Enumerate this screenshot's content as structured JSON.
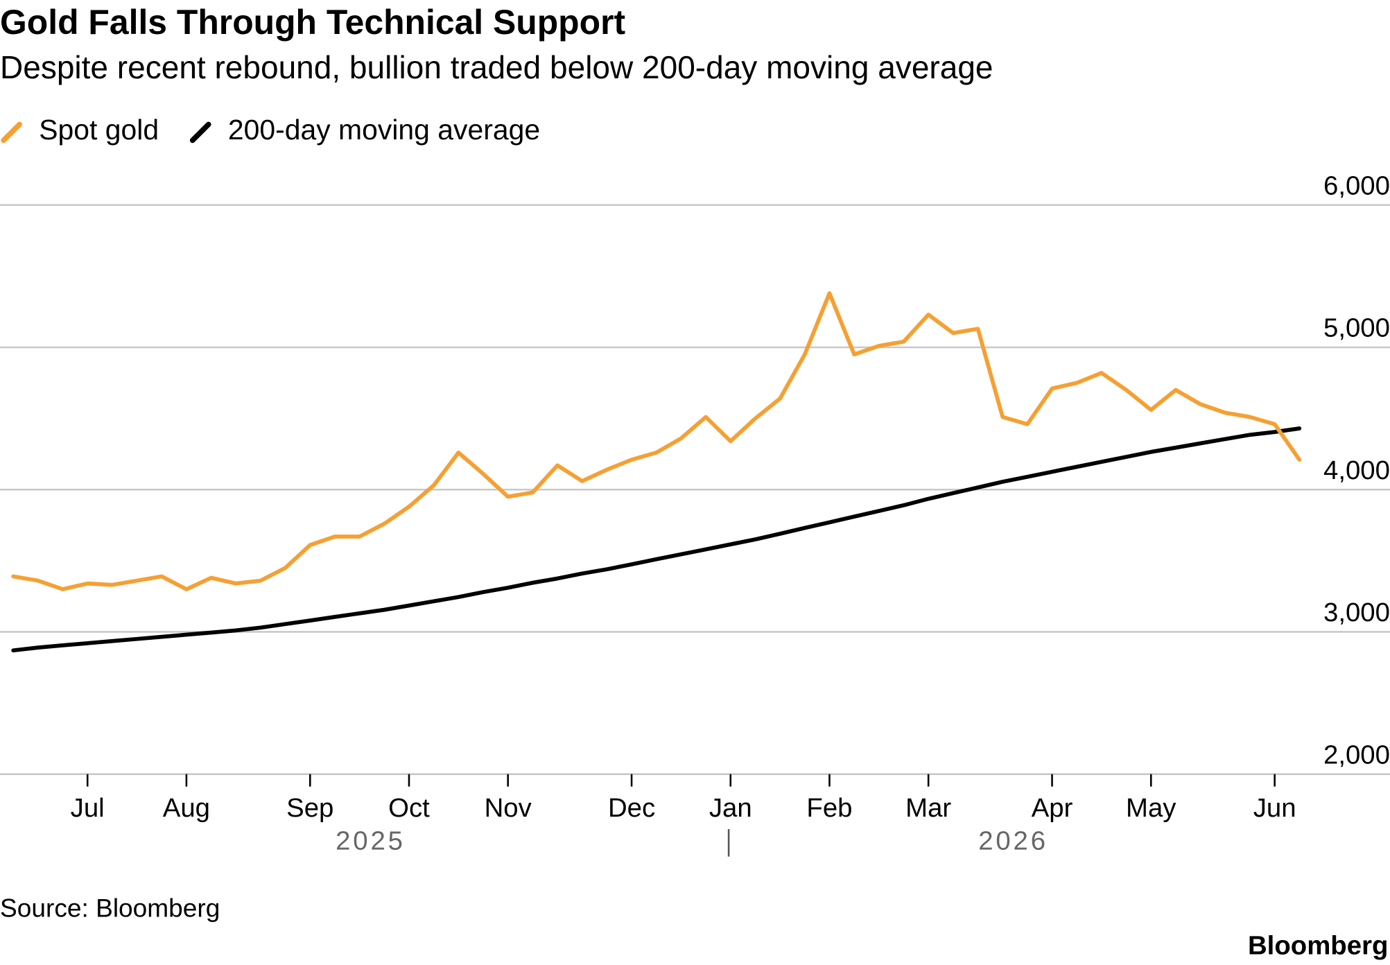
{
  "chart_data": {
    "type": "line",
    "title": "Gold Falls Through Technical Support",
    "subtitle": "Despite recent rebound, bullion traded below 200-day moving average",
    "source": "Source: Bloomberg",
    "brand": "Bloomberg",
    "categories": [
      null,
      null,
      null,
      "Jul",
      null,
      null,
      null,
      "Aug",
      null,
      null,
      null,
      null,
      "Sep",
      null,
      null,
      null,
      "Oct",
      null,
      null,
      null,
      "Nov",
      null,
      null,
      null,
      null,
      "Dec",
      null,
      null,
      null,
      "Jan",
      null,
      null,
      null,
      "Feb",
      null,
      null,
      null,
      "Mar",
      null,
      null,
      null,
      null,
      "Apr",
      null,
      null,
      null,
      "May",
      null,
      null,
      null,
      null,
      "Jun",
      null
    ],
    "x_group_labels": [
      "2025",
      "2026"
    ],
    "series": [
      {
        "name": "Spot gold",
        "color": "#f5a033",
        "values": [
          3390,
          3360,
          3300,
          3340,
          3330,
          3360,
          3390,
          3300,
          3380,
          3340,
          3360,
          3450,
          3610,
          3670,
          3670,
          3760,
          3880,
          4030,
          4260,
          4110,
          3950,
          3980,
          4170,
          4060,
          4140,
          4210,
          4260,
          4360,
          4510,
          4340,
          4500,
          4640,
          4950,
          5380,
          4950,
          5010,
          5040,
          5230,
          5100,
          5130,
          4510,
          4460,
          4710,
          4750,
          4820,
          4700,
          4560,
          4700,
          4600,
          4540,
          4510,
          4460,
          4210
        ]
      },
      {
        "name": "200-day moving average",
        "color": "#000000",
        "values": [
          2870,
          2890,
          2905,
          2920,
          2935,
          2950,
          2965,
          2980,
          2995,
          3010,
          3030,
          3055,
          3080,
          3105,
          3130,
          3155,
          3185,
          3215,
          3245,
          3280,
          3310,
          3345,
          3375,
          3410,
          3440,
          3475,
          3510,
          3545,
          3580,
          3615,
          3650,
          3690,
          3730,
          3770,
          3810,
          3850,
          3890,
          3935,
          3975,
          4015,
          4055,
          4090,
          4125,
          4160,
          4195,
          4230,
          4265,
          4295,
          4325,
          4355,
          4385,
          4405,
          4430
        ]
      }
    ],
    "ylim": [
      2000,
      6000
    ],
    "yticks": [
      {
        "value": 2000,
        "label": "2,000"
      },
      {
        "value": 3000,
        "label": "3,000"
      },
      {
        "value": 4000,
        "label": "4,000"
      },
      {
        "value": 5000,
        "label": "5,000"
      },
      {
        "value": 6000,
        "label": "6,000"
      }
    ],
    "grid": true,
    "legend": "top-left"
  }
}
